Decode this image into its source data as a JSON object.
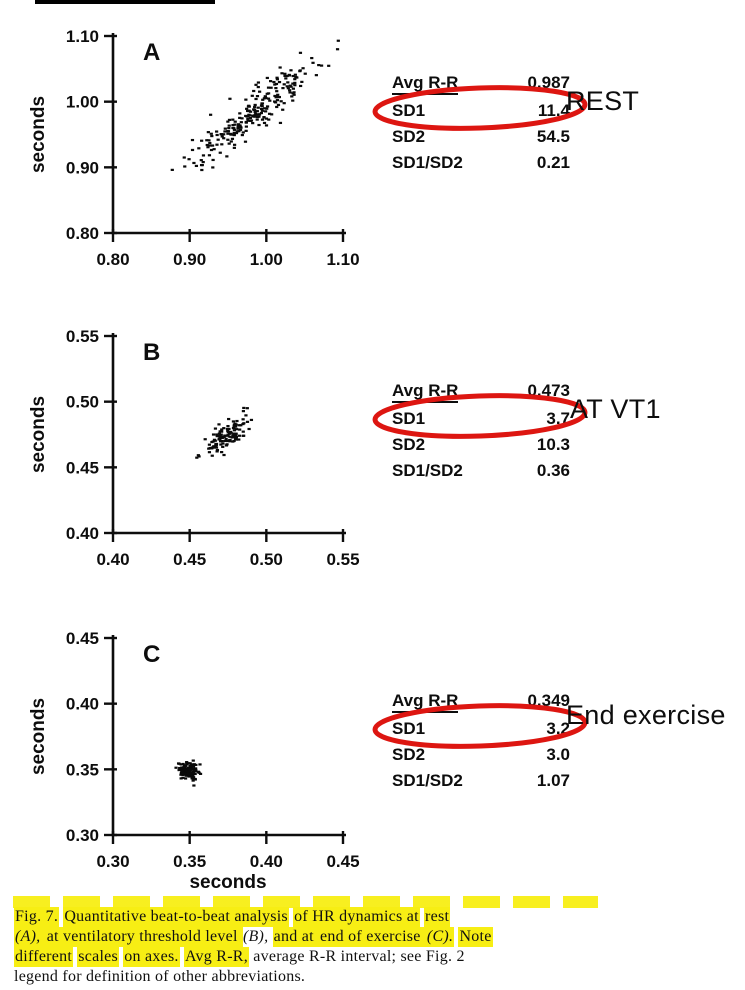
{
  "colors": {
    "highlight": "#f7ee14",
    "circle_red": "#dd1611",
    "ink": "#0d0d0d"
  },
  "figure": {
    "bottom_xlabel": "seconds",
    "panels": [
      {
        "letter": "A",
        "condition": "REST",
        "stats": [
          {
            "label": "Avg R-R",
            "value": "0.987"
          },
          {
            "label": "SD1",
            "value": "11.4"
          },
          {
            "label": "SD2",
            "value": "54.5"
          },
          {
            "label": "SD1/SD2",
            "value": "0.21"
          }
        ]
      },
      {
        "letter": "B",
        "condition": "AT VT1",
        "stats": [
          {
            "label": "Avg R-R",
            "value": "0.473"
          },
          {
            "label": "SD1",
            "value": "3.7"
          },
          {
            "label": "SD2",
            "value": "10.3"
          },
          {
            "label": "SD1/SD2",
            "value": "0.36"
          }
        ]
      },
      {
        "letter": "C",
        "condition": "End exercise",
        "stats": [
          {
            "label": "Avg R-R",
            "value": "0.349"
          },
          {
            "label": "SD1",
            "value": "3.2"
          },
          {
            "label": "SD2",
            "value": "3.0"
          },
          {
            "label": "SD1/SD2",
            "value": "1.07"
          }
        ]
      }
    ]
  },
  "chart_data": [
    {
      "type": "scatter",
      "panel": "A",
      "condition": "REST",
      "xlabel": "seconds",
      "ylabel": "seconds",
      "xlim": [
        0.8,
        1.1
      ],
      "ylim": [
        0.8,
        1.1
      ],
      "xticks": [
        0.8,
        0.9,
        1.0,
        1.1
      ],
      "yticks": [
        0.8,
        0.9,
        1.0,
        1.1
      ],
      "cluster": {
        "cx": 0.987,
        "cy": 0.987,
        "sd1_s": 0.0114,
        "sd2_s": 0.0545,
        "n": 250,
        "seed": 7
      },
      "stats": {
        "avg_rr_s": 0.987,
        "sd1_ms": 11.4,
        "sd2_ms": 54.5,
        "sd1_sd2": 0.21
      }
    },
    {
      "type": "scatter",
      "panel": "B",
      "condition": "AT VT1",
      "xlabel": "seconds",
      "ylabel": "seconds",
      "xlim": [
        0.4,
        0.55
      ],
      "ylim": [
        0.4,
        0.55
      ],
      "xticks": [
        0.4,
        0.45,
        0.5,
        0.55
      ],
      "yticks": [
        0.4,
        0.45,
        0.5,
        0.55
      ],
      "cluster": {
        "cx": 0.473,
        "cy": 0.473,
        "sd1_s": 0.0037,
        "sd2_s": 0.0103,
        "n": 120,
        "seed": 19
      },
      "stats": {
        "avg_rr_s": 0.473,
        "sd1_ms": 3.7,
        "sd2_ms": 10.3,
        "sd1_sd2": 0.36
      }
    },
    {
      "type": "scatter",
      "panel": "C",
      "condition": "End exercise",
      "xlabel": "seconds",
      "ylabel": "seconds",
      "xlim": [
        0.3,
        0.45
      ],
      "ylim": [
        0.3,
        0.45
      ],
      "xticks": [
        0.3,
        0.35,
        0.4,
        0.45
      ],
      "yticks": [
        0.3,
        0.35,
        0.4,
        0.45
      ],
      "cluster": {
        "cx": 0.349,
        "cy": 0.349,
        "sd1_s": 0.0032,
        "sd2_s": 0.003,
        "n": 150,
        "seed": 29
      },
      "stats": {
        "avg_rr_s": 0.349,
        "sd1_ms": 3.2,
        "sd2_ms": 3.0,
        "sd1_sd2": 1.07
      }
    }
  ],
  "caption": {
    "lines": [
      [
        {
          "t": "Fig. 7.",
          "hl": true
        },
        {
          "t": " ",
          "hl": false
        },
        {
          "t": "Quantitative beat-to-beat analysis",
          "hl": true
        },
        {
          "t": " ",
          "hl": false
        },
        {
          "t": "of HR dynamics at",
          "hl": true
        },
        {
          "t": " ",
          "hl": false
        },
        {
          "t": "rest",
          "hl": true
        }
      ],
      [
        {
          "t": "(A),",
          "hl": true,
          "it": true
        },
        {
          "t": " at ventilatory threshold level ",
          "hl": true
        },
        {
          "t": "(B),",
          "hl": false,
          "it": true
        },
        {
          "t": " ",
          "hl": false
        },
        {
          "t": "and at ",
          "hl": true
        },
        {
          "t": "end of exercise ",
          "hl": true
        },
        {
          "t": "(C).",
          "hl": true,
          "it": true
        },
        {
          "t": " ",
          "hl": false
        },
        {
          "t": "Note",
          "hl": true
        }
      ],
      [
        {
          "t": "different",
          "hl": true
        },
        {
          "t": " ",
          "hl": false
        },
        {
          "t": "scales",
          "hl": true
        },
        {
          "t": " ",
          "hl": false
        },
        {
          "t": "on axes.",
          "hl": true
        },
        {
          "t": " ",
          "hl": false
        },
        {
          "t": "Avg R-R,",
          "hl": true
        },
        {
          "t": " average R-R interval; see Fig. 2",
          "hl": false
        }
      ],
      [
        {
          "t": "legend for definition of other abbreviations.",
          "hl": false
        }
      ]
    ]
  }
}
